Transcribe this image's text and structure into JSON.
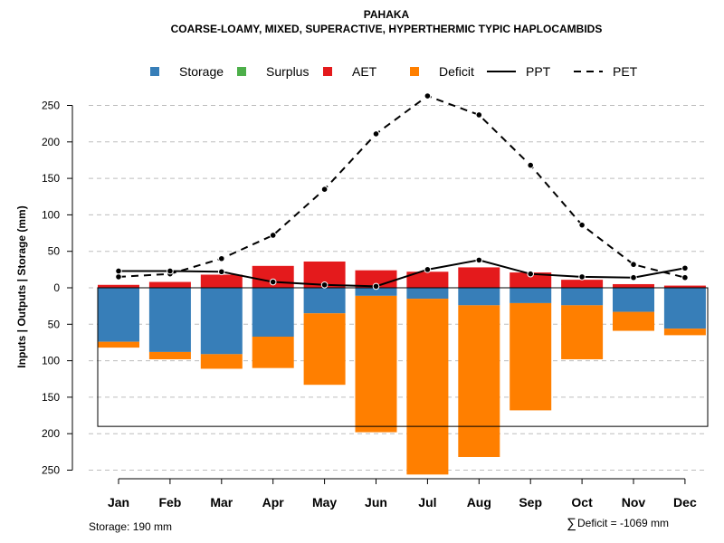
{
  "chart_data": {
    "type": "bar",
    "title": "PAHAKA",
    "subtitle": "COARSE-LOAMY, MIXED, SUPERACTIVE, HYPERTHERMIC TYPIC HAPLOCAMBIDS",
    "ylabel": "Inputs | Outputs | Storage    (mm)",
    "categories": [
      "Jan",
      "Feb",
      "Mar",
      "Apr",
      "May",
      "Jun",
      "Jul",
      "Aug",
      "Sep",
      "Oct",
      "Nov",
      "Dec"
    ],
    "y_ticks": [
      250,
      200,
      150,
      100,
      50,
      0,
      50,
      100,
      150,
      200,
      250
    ],
    "y_tick_values": [
      250,
      200,
      150,
      100,
      50,
      0,
      -50,
      -100,
      -150,
      -200,
      -250
    ],
    "ylim": [
      -250,
      260
    ],
    "legend": [
      {
        "name": "Storage",
        "color": "#377EB8",
        "kind": "box"
      },
      {
        "name": "Surplus",
        "color": "#4DAF4A",
        "kind": "box"
      },
      {
        "name": "AET",
        "color": "#E41A1C",
        "kind": "box"
      },
      {
        "name": "Deficit",
        "color": "#FF7F00",
        "kind": "box"
      },
      {
        "name": "PPT",
        "color": "#000000",
        "kind": "solid"
      },
      {
        "name": "PET",
        "color": "#000000",
        "kind": "dashed"
      }
    ],
    "series": [
      {
        "name": "AET",
        "values": [
          4,
          8,
          18,
          30,
          36,
          24,
          22,
          28,
          21,
          11,
          5,
          3
        ]
      },
      {
        "name": "Storage",
        "values": [
          74,
          88,
          91,
          67,
          35,
          11,
          15,
          24,
          21,
          24,
          33,
          56
        ]
      },
      {
        "name": "Deficit",
        "values": [
          8,
          10,
          20,
          43,
          98,
          187,
          241,
          208,
          147,
          74,
          26,
          9
        ]
      },
      {
        "name": "Surplus",
        "values": [
          0,
          0,
          0,
          0,
          0,
          0,
          0,
          0,
          0,
          0,
          0,
          0
        ]
      },
      {
        "name": "PPT",
        "values": [
          23,
          23,
          22,
          8,
          4,
          2,
          25,
          38,
          19,
          15,
          14,
          27
        ]
      },
      {
        "name": "PET",
        "values": [
          15,
          19,
          40,
          72,
          135,
          211,
          263,
          237,
          168,
          86,
          32,
          14
        ]
      }
    ],
    "storage_capacity": 190
  },
  "footer": {
    "storage_label": "Storage: 190 mm",
    "deficit_symbol": "∑",
    "deficit_label": "Deficit = -1069 mm"
  }
}
